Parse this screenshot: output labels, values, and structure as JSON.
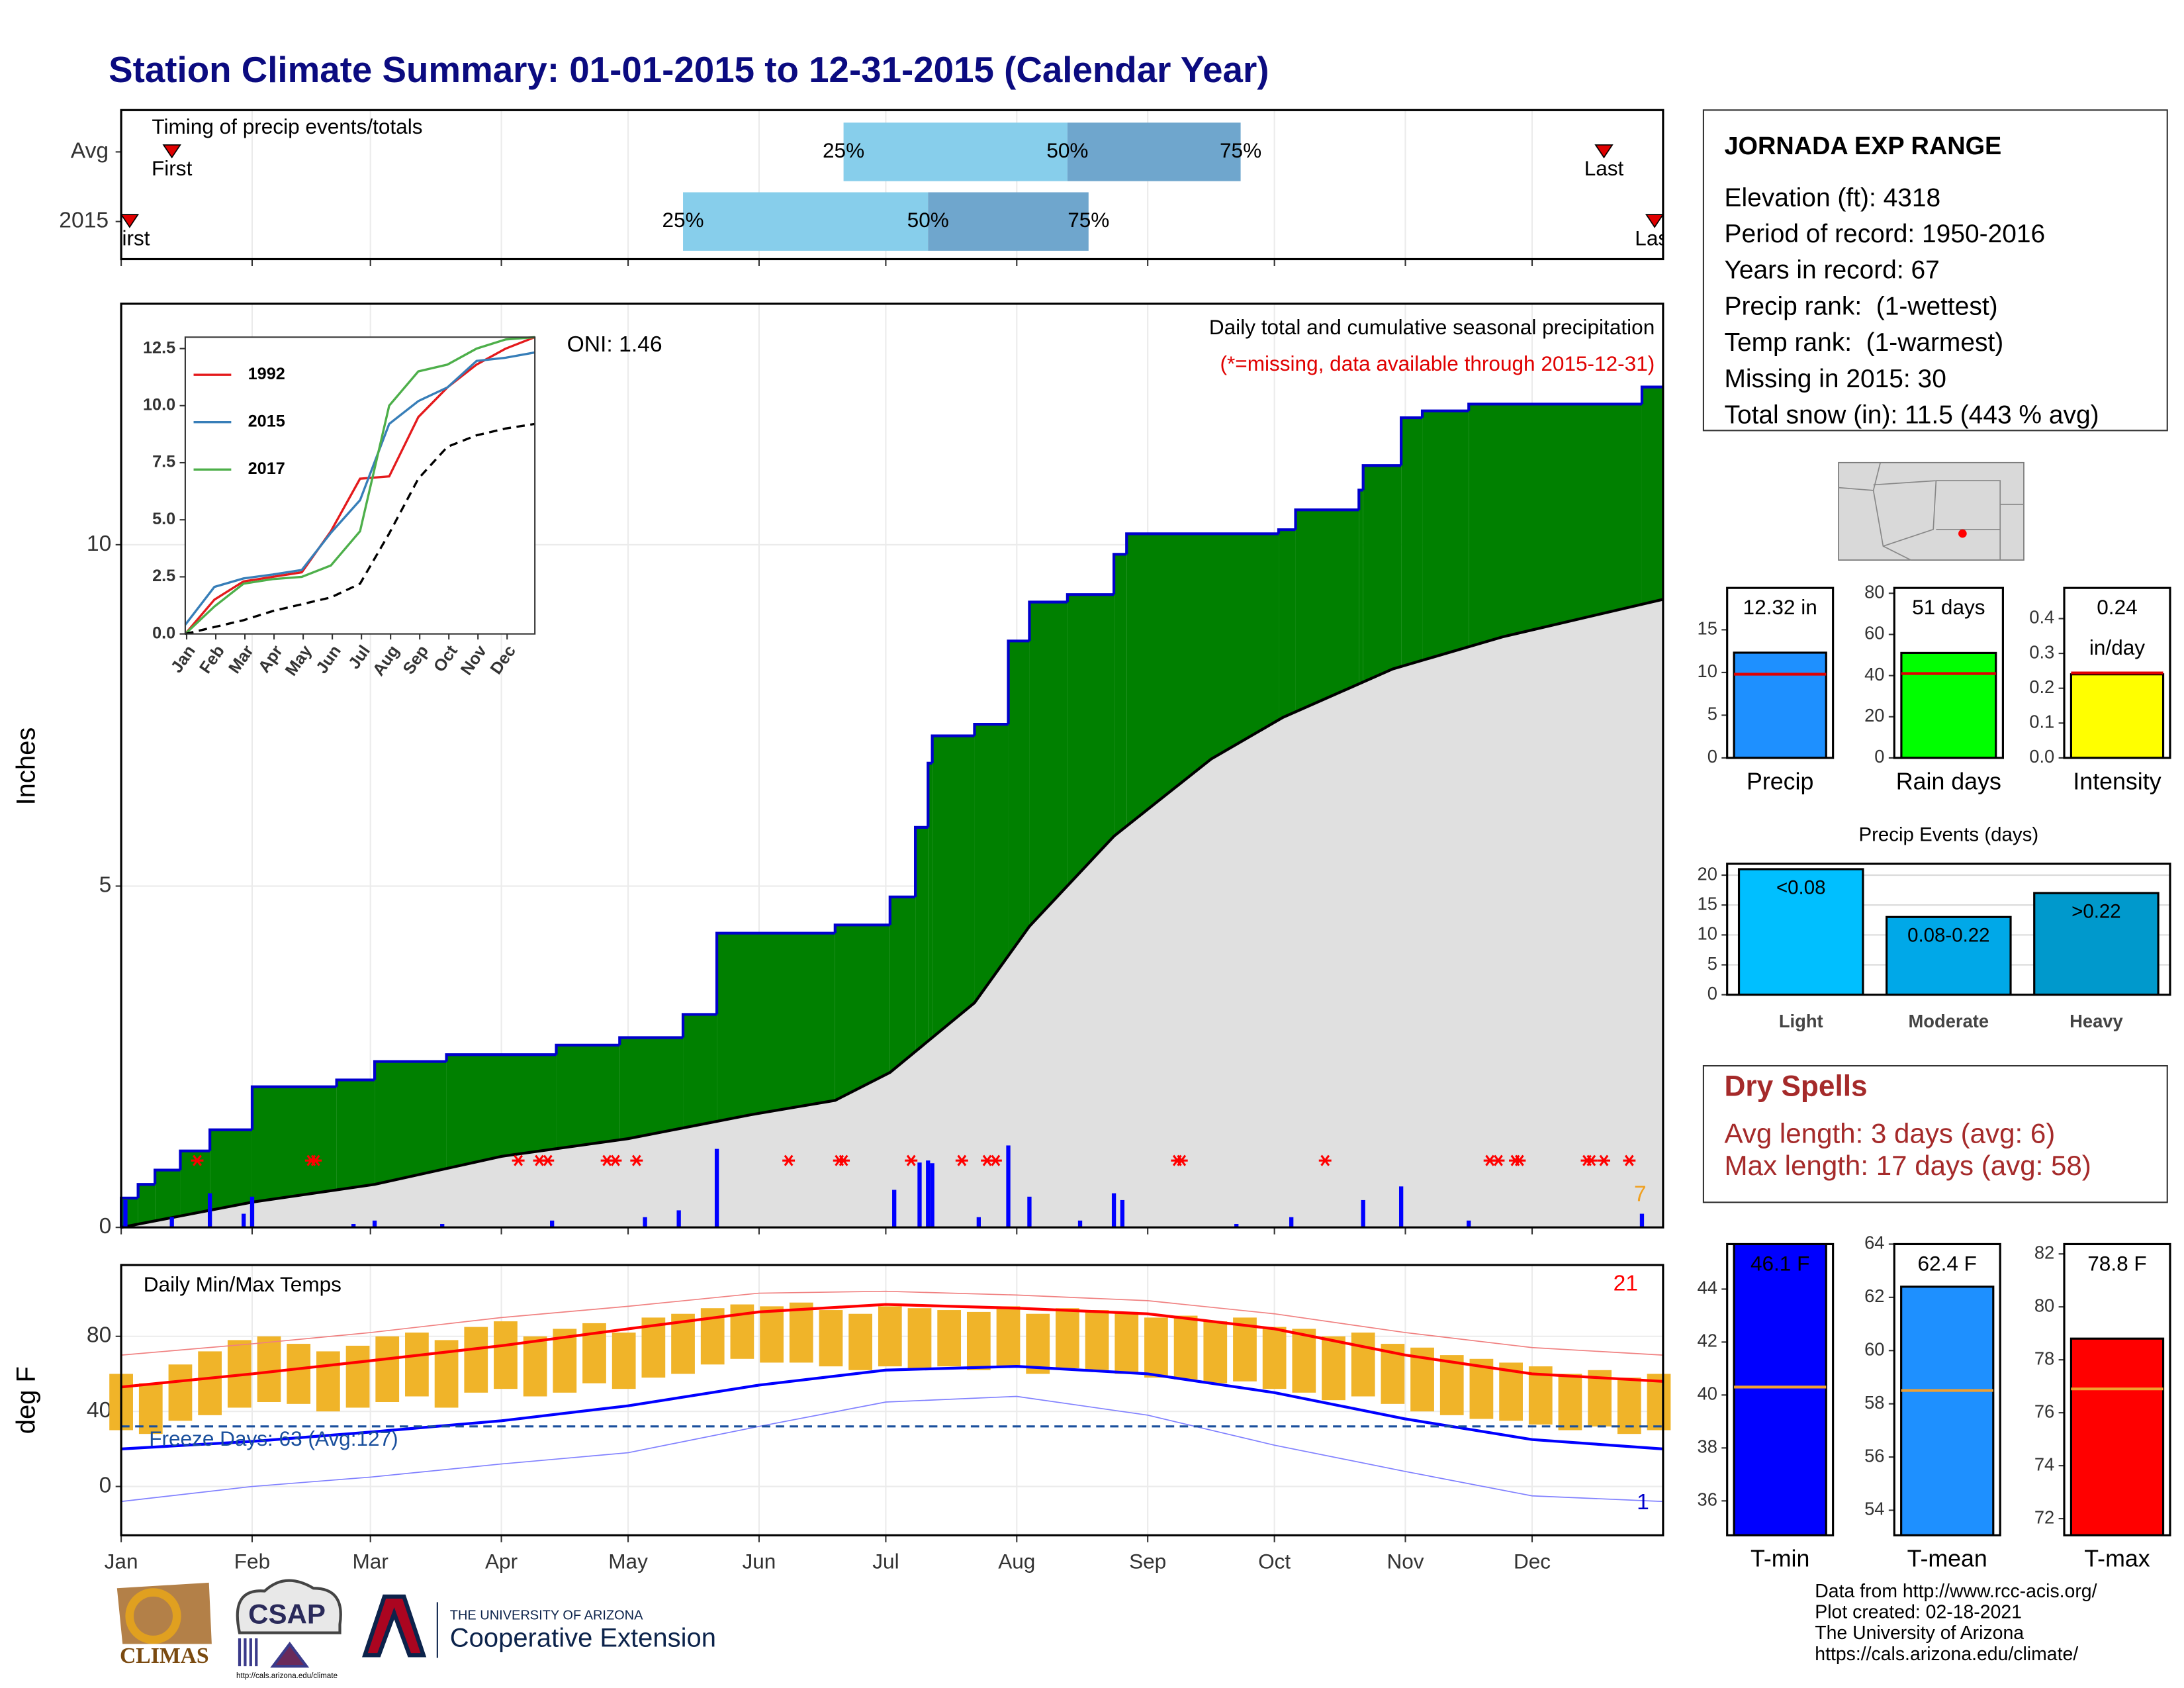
{
  "title": "Station Climate Summary: 01-01-2015 to 12-31-2015 (Calendar Year)",
  "station": {
    "name": "JORNADA EXP RANGE",
    "lines": [
      "Elevation (ft): 4318",
      "Period of record: 1950-2016",
      "Years in record: 67",
      "Precip rank:  (1-wettest)",
      "Temp rank:  (1-warmest)",
      "Missing in 2015: 30",
      "Total snow (in): 11.5 (443 % avg)"
    ]
  },
  "dry_spells": {
    "title": "Dry Spells",
    "lines": [
      "Avg length: 3 days (avg: 6)",
      "Max length: 17 days (avg: 58)"
    ]
  },
  "footer": {
    "credits": [
      "Data from http://www.rcc-acis.org/",
      "Plot created: 02-18-2021",
      "The University of Arizona",
      "https://cals.arizona.edu/climate/"
    ],
    "logos": [
      "CLIMAS",
      "CSAP",
      "http://cals.arizona.edu/climate",
      "THE UNIVERSITY OF ARIZONA",
      "Cooperative Extension"
    ]
  },
  "chart_data": [
    {
      "type": "timing",
      "title": "Timing of precip events/totals",
      "categories": [
        "Avg",
        "2015"
      ],
      "quantiles": [
        [
          171,
          224,
          265
        ],
        [
          133,
          191,
          229
        ]
      ],
      "quantile_labels": [
        "25%",
        "50%",
        "75%"
      ],
      "first": [
        12,
        2
      ],
      "last": [
        351,
        363
      ],
      "first_label": "First",
      "last_label": "Last",
      "colors": [
        "#87ceeb",
        "#6fa6cd"
      ],
      "marker_color": "#e00000"
    },
    {
      "type": "area",
      "ylabel": "Inches",
      "subtitle": "Daily total and cumulative seasonal precipitation",
      "note": "(*=missing, data available through 2015-12-31)",
      "note_color": "#e00000",
      "oni": "ONI: 1.46",
      "ylim": [
        0,
        13.53
      ],
      "yticks": [
        0,
        5,
        10
      ],
      "grid": true,
      "series": [
        {
          "color": "#008000",
          "line_color": "#0000cd",
          "x": [
            0,
            4,
            8,
            14,
            21,
            31,
            51,
            60,
            77,
            103,
            118,
            133,
            141,
            169,
            182,
            188,
            191,
            192,
            202,
            210,
            215,
            224,
            235,
            238,
            274,
            278,
            293,
            294,
            303,
            308,
            319,
            360
          ],
          "values": [
            0.43,
            0.63,
            0.84,
            1.12,
            1.43,
            2.06,
            2.16,
            2.43,
            2.53,
            2.67,
            2.78,
            3.12,
            4.31,
            4.43,
            4.84,
            5.86,
            6.8,
            7.2,
            7.37,
            8.59,
            9.16,
            9.27,
            9.86,
            10.16,
            10.22,
            10.51,
            10.8,
            11.16,
            11.86,
            11.96,
            12.06,
            12.31
          ]
        },
        {
          "color": "#e0e0e0",
          "line_color": "#000000",
          "x": [
            0,
            31,
            60,
            90,
            120,
            149,
            169,
            182,
            202,
            215,
            235,
            258,
            275,
            301,
            327,
            365
          ],
          "values": [
            0,
            0.37,
            0.63,
            1.04,
            1.3,
            1.65,
            1.86,
            2.27,
            3.29,
            4.41,
            5.73,
            6.86,
            7.47,
            8.18,
            8.65,
            9.2
          ]
        }
      ],
      "daily": {
        "color": "#0000ff",
        "x": [
          1,
          12,
          21,
          29,
          31,
          55,
          60,
          76,
          102,
          124,
          132,
          141,
          183,
          189,
          191,
          192,
          203,
          210,
          215,
          227,
          235,
          237,
          264,
          277,
          294,
          303,
          319,
          360
        ],
        "values": [
          0.4,
          0.15,
          0.5,
          0.2,
          0.45,
          0.05,
          0.1,
          0.05,
          0.1,
          0.15,
          0.25,
          1.15,
          0.55,
          0.95,
          0.98,
          0.94,
          0.15,
          1.2,
          0.45,
          0.1,
          0.5,
          0.4,
          0.05,
          0.15,
          0.4,
          0.6,
          0.1,
          0.2
        ]
      },
      "missing_days": [
        18,
        45,
        46,
        94,
        99,
        101,
        115,
        117,
        122,
        158,
        170,
        171,
        187,
        199,
        205,
        207,
        250,
        251,
        285,
        324,
        326,
        330,
        331,
        347,
        348,
        351,
        357
      ],
      "missing_color": "#ff0000",
      "annotations": [
        {
          "text": "7",
          "color": "#f0a020"
        }
      ]
    },
    {
      "type": "line",
      "x": [
        0,
        1,
        2,
        3,
        4,
        5,
        6,
        7,
        8,
        9,
        10,
        11,
        12
      ],
      "xlim": [
        0,
        12
      ],
      "xticks": [
        {
          "value": 0,
          "label": "Jan"
        },
        {
          "value": 1,
          "label": "Feb"
        },
        {
          "value": 2,
          "label": "Mar"
        },
        {
          "value": 3,
          "label": "Apr"
        },
        {
          "value": 4,
          "label": "May"
        },
        {
          "value": 5,
          "label": "Jun"
        },
        {
          "value": 6,
          "label": "Jul"
        },
        {
          "value": 7,
          "label": "Aug"
        },
        {
          "value": 8,
          "label": "Sep"
        },
        {
          "value": 9,
          "label": "Oct"
        },
        {
          "value": 10,
          "label": "Nov"
        },
        {
          "value": 11,
          "label": "Dec"
        }
      ],
      "ylim": [
        0,
        13
      ],
      "yticks": [
        {
          "value": 0,
          "label": "0.0"
        },
        {
          "value": 2.5,
          "label": "2.5"
        },
        {
          "value": 5,
          "label": "5.0"
        },
        {
          "value": 7.5,
          "label": "7.5"
        },
        {
          "value": 10,
          "label": "10.0"
        },
        {
          "value": 12.5,
          "label": "12.5"
        }
      ],
      "series": [
        {
          "name": "1992",
          "color": "#e41a1c",
          "values": [
            0,
            1.5,
            2.3,
            2.5,
            2.7,
            4.5,
            6.8,
            6.9,
            9.5,
            10.8,
            11.8,
            12.5,
            13
          ]
        },
        {
          "name": "2015",
          "color": "#377eb8",
          "values": [
            0.4,
            2.06,
            2.43,
            2.6,
            2.8,
            4.43,
            5.86,
            9.2,
            10.2,
            10.8,
            11.96,
            12.1,
            12.33
          ]
        },
        {
          "name": "2017",
          "color": "#4daf4a",
          "values": [
            0,
            1.2,
            2.2,
            2.4,
            2.5,
            3,
            4.5,
            10,
            11.5,
            11.8,
            12.5,
            12.9,
            13
          ]
        },
        {
          "color": "#000000",
          "dash": true,
          "values": [
            0,
            0.3,
            0.6,
            1,
            1.3,
            1.6,
            2.2,
            4.4,
            6.8,
            8.2,
            8.7,
            9,
            9.2
          ]
        }
      ]
    },
    {
      "type": "temp",
      "title": "Daily Min/Max Temps",
      "ylabel": "deg F",
      "ylim": [
        -26,
        118
      ],
      "yticks": [
        0,
        40,
        80
      ],
      "grid": true,
      "xlim": [
        0,
        365
      ],
      "xticks": [
        {
          "value": 0,
          "label": "Jan"
        },
        {
          "value": 31,
          "label": "Feb"
        },
        {
          "value": 59,
          "label": "Mar"
        },
        {
          "value": 90,
          "label": "Apr"
        },
        {
          "value": 120,
          "label": "May"
        },
        {
          "value": 151,
          "label": "Jun"
        },
        {
          "value": 181,
          "label": "Jul"
        },
        {
          "value": 212,
          "label": "Aug"
        },
        {
          "value": 243,
          "label": "Sep"
        },
        {
          "value": 273,
          "label": "Oct"
        },
        {
          "value": 304,
          "label": "Nov"
        },
        {
          "value": 334,
          "label": "Dec"
        }
      ],
      "bars": {
        "color": "#f0b429",
        "x": [
          0,
          7,
          14,
          21,
          28,
          35,
          42,
          49,
          56,
          63,
          70,
          77,
          84,
          91,
          98,
          105,
          112,
          119,
          126,
          133,
          140,
          147,
          154,
          161,
          168,
          175,
          182,
          189,
          196,
          203,
          210,
          217,
          224,
          231,
          238,
          245,
          252,
          259,
          266,
          273,
          280,
          287,
          294,
          301,
          308,
          315,
          322,
          329,
          336,
          343,
          350,
          357,
          364
        ],
        "low": [
          30,
          28,
          35,
          38,
          42,
          45,
          44,
          40,
          42,
          45,
          48,
          42,
          50,
          52,
          48,
          50,
          55,
          52,
          58,
          60,
          65,
          68,
          66,
          66,
          64,
          62,
          64,
          63,
          64,
          62,
          64,
          60,
          63,
          62,
          60,
          58,
          57,
          55,
          56,
          52,
          50,
          46,
          48,
          44,
          40,
          38,
          36,
          35,
          33,
          30,
          32,
          28,
          30
        ],
        "high": [
          60,
          55,
          65,
          72,
          78,
          80,
          76,
          72,
          75,
          80,
          82,
          78,
          85,
          88,
          80,
          84,
          87,
          82,
          90,
          92,
          95,
          97,
          96,
          98,
          94,
          92,
          96,
          95,
          94,
          93,
          96,
          92,
          95,
          94,
          93,
          90,
          91,
          88,
          90,
          85,
          84,
          80,
          82,
          76,
          74,
          70,
          68,
          66,
          64,
          60,
          62,
          58,
          60
        ]
      },
      "line_x": [
        0,
        31,
        59,
        90,
        120,
        151,
        181,
        212,
        243,
        273,
        304,
        334,
        365
      ],
      "lines": [
        {
          "color": "#f08080",
          "width": 0.8,
          "values": [
            70,
            76,
            82,
            90,
            96,
            103,
            104,
            102,
            99,
            92,
            82,
            74,
            70
          ]
        },
        {
          "color": "#ff0000",
          "width": 2,
          "values": [
            53,
            60,
            67,
            75,
            84,
            93,
            97,
            95,
            92,
            84,
            70,
            60,
            56
          ]
        },
        {
          "color": "#0000ff",
          "width": 2,
          "values": [
            20,
            24,
            29,
            35,
            43,
            54,
            62,
            64,
            60,
            50,
            36,
            25,
            20
          ]
        },
        {
          "color": "#8080ff",
          "width": 0.8,
          "values": [
            -8,
            0,
            5,
            12,
            18,
            32,
            45,
            48,
            38,
            22,
            8,
            -5,
            -8
          ]
        }
      ],
      "freeze": 32,
      "freeze_color": "#1a4f9c",
      "freeze_label": "Freeze Days: 63 (Avg:127)",
      "annotations": [
        {
          "text": "21",
          "color": "#ff0000"
        },
        {
          "text": "1",
          "color": "#0000cc"
        }
      ]
    },
    {
      "type": "bar",
      "categories": [
        "Precip"
      ],
      "values": [
        12.32
      ],
      "value_labels": [
        "12.32 in"
      ],
      "avg": 9.8,
      "avg_color": "#e00000",
      "color": "#1e90ff",
      "ylim": [
        0,
        19.9
      ],
      "yticks": [
        0,
        5,
        10,
        15
      ]
    },
    {
      "type": "bar",
      "categories": [
        "Rain days"
      ],
      "values": [
        51
      ],
      "value_labels": [
        "51 days"
      ],
      "avg": 41,
      "avg_color": "#e00000",
      "color": "#00ff00",
      "ylim": [
        0,
        82.6
      ],
      "yticks": [
        0,
        20,
        40,
        60,
        80
      ]
    },
    {
      "type": "bar",
      "categories": [
        "Intensity"
      ],
      "values": [
        0.24
      ],
      "value_labels": [
        "0.24"
      ],
      "unit_label": "in/day",
      "avg": 0.244,
      "avg_color": "#e00000",
      "color": "#ffff00",
      "ylim": [
        0,
        0.488
      ],
      "yticks": [
        {
          "value": 0,
          "label": "0.0"
        },
        0.1,
        0.2,
        0.3,
        0.4
      ]
    },
    {
      "type": "bar",
      "title": "Precip Events (days)",
      "categories": [
        "Light",
        "Moderate",
        "Heavy"
      ],
      "values": [
        21,
        13,
        17
      ],
      "value_labels": [
        "<0.08",
        "0.08-0.22",
        ">0.22"
      ],
      "colors": [
        "#00bfff",
        "#00a8e8",
        "#0099cc"
      ],
      "ylim": [
        0,
        21.9
      ],
      "yticks": [
        0,
        5,
        10,
        15,
        20
      ],
      "grid": true
    },
    {
      "type": "bar",
      "categories": [
        "T-min"
      ],
      "values": [
        46.1
      ],
      "value_labels": [
        "46.1 F"
      ],
      "avg": 40.3,
      "avg_color": "#f0a030",
      "color": "#0000ff",
      "ylim": [
        34.7,
        45.7
      ],
      "yticks": [
        36,
        38,
        40,
        42,
        44
      ]
    },
    {
      "type": "bar",
      "categories": [
        "T-mean"
      ],
      "values": [
        62.4
      ],
      "value_labels": [
        "62.4 F"
      ],
      "avg": 58.5,
      "avg_color": "#f0a030",
      "color": "#1e90ff",
      "ylim": [
        53.06,
        64
      ],
      "yticks": [
        54,
        56,
        58,
        60,
        62,
        64
      ]
    },
    {
      "type": "bar",
      "categories": [
        "T-max"
      ],
      "values": [
        78.8
      ],
      "value_labels": [
        "78.8 F"
      ],
      "avg": 76.9,
      "avg_color": "#f0a030",
      "color": "#ff0000",
      "ylim": [
        71.37,
        82.37
      ],
      "yticks": [
        72,
        74,
        76,
        78,
        80,
        82
      ]
    }
  ]
}
